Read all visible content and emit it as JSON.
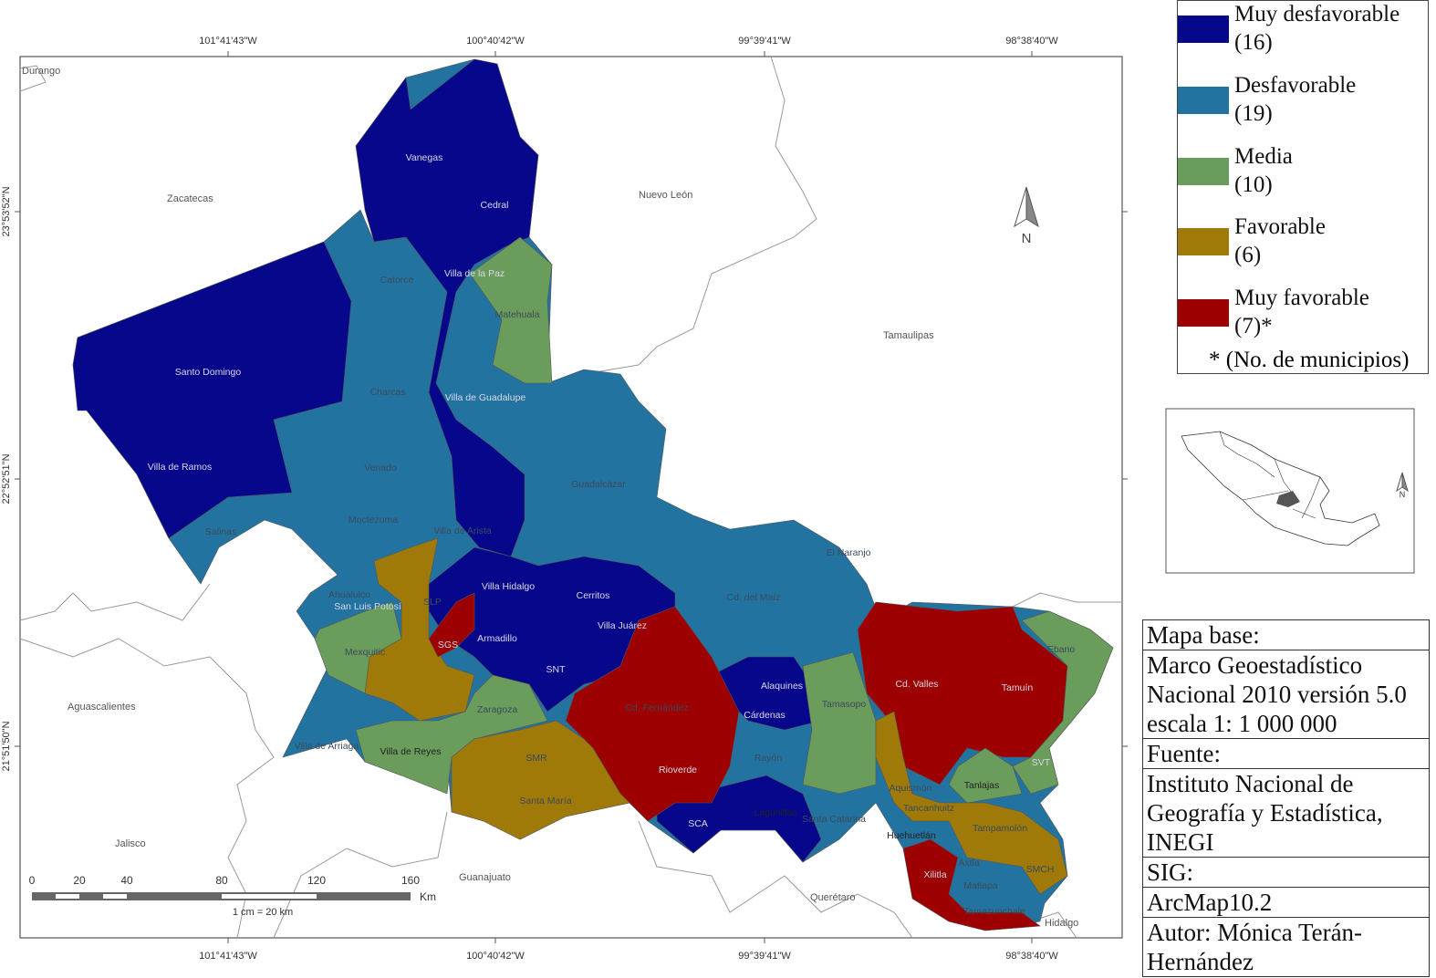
{
  "map": {
    "graticule": {
      "longitudes": [
        "101°41'43\"W",
        "100°40'42\"W",
        "99°39'41\"W",
        "98°38'40\"W"
      ],
      "latitudes": [
        "23°53'52\"N",
        "22°52'51\"N",
        "21°51'50\"N"
      ]
    },
    "states": [
      "Durango",
      "Zacatecas",
      "Nuevo León",
      "Tamaulipas",
      "Aguascalientes",
      "Jalisco",
      "Guanajuato",
      "Querétaro",
      "Hidalgo"
    ],
    "municipalities": [
      "Vanegas",
      "Cedral",
      "Catorce",
      "Villa de la Paz",
      "Matehuala",
      "Santo Domingo",
      "Charcas",
      "Villa de Guadalupe",
      "Villa de Ramos",
      "Venado",
      "Guadalcázar",
      "Moctezuma",
      "Salinas",
      "Villa de Arista",
      "El Naranjo",
      "Villa Hidalgo",
      "Cerritos",
      "Cd. del Maíz",
      "Ahualulco",
      "San Luis Potosí",
      "SLP",
      "Villa Juárez",
      "Armadillo",
      "SGS",
      "Ebano",
      "Mexquitic",
      "SNT",
      "Cd. Valles",
      "Alaquines",
      "Tamuín",
      "Cd. Fernández",
      "Zaragoza",
      "Tamasopo",
      "Cárdenas",
      "Villa de Arriaga",
      "Villa de Reyes",
      "SMR",
      "Rayón",
      "SVT",
      "Rioverde",
      "Tanlajas",
      "Aquismón",
      "Santa María",
      "Tancanhuitz",
      "Lagunillas",
      "Santa Catarina",
      "SCA",
      "Huehuetlán",
      "Tampamolón",
      "Axtla",
      "Xilitla",
      "Matlapa",
      "SMCH",
      "Tamazunchale"
    ],
    "north": "N",
    "scale_bar": {
      "ticks": [
        "0",
        "20",
        "40",
        "80",
        "120",
        "160"
      ],
      "unit": "Km",
      "note": "1 cm = 20 km"
    }
  },
  "legend": {
    "items": [
      {
        "label": "Muy desfavorable",
        "count": "(16)",
        "color": "#07078c"
      },
      {
        "label": "Desfavorable",
        "count": "(19)",
        "color": "#2373a0"
      },
      {
        "label": "Media",
        "count": "(10)",
        "color": "#6a9c5c"
      },
      {
        "label": "Favorable",
        "count": "(6)",
        "color": "#a07a08"
      },
      {
        "label": "Muy favorable",
        "count": "(7)*",
        "color": "#9c0000"
      }
    ],
    "note": "* (No. de municipios)"
  },
  "inset": {
    "north": "N"
  },
  "info": [
    "Mapa base:",
    "Marco Geoestadístico Nacional 2010 versión 5.0 escala 1: 1 000 000",
    "Fuente:",
    "Instituto Nacional de Geografía y Estadística, INEGI",
    "SIG:",
    "ArcMap10.2",
    "Autor: Mónica Terán-Hernández"
  ]
}
